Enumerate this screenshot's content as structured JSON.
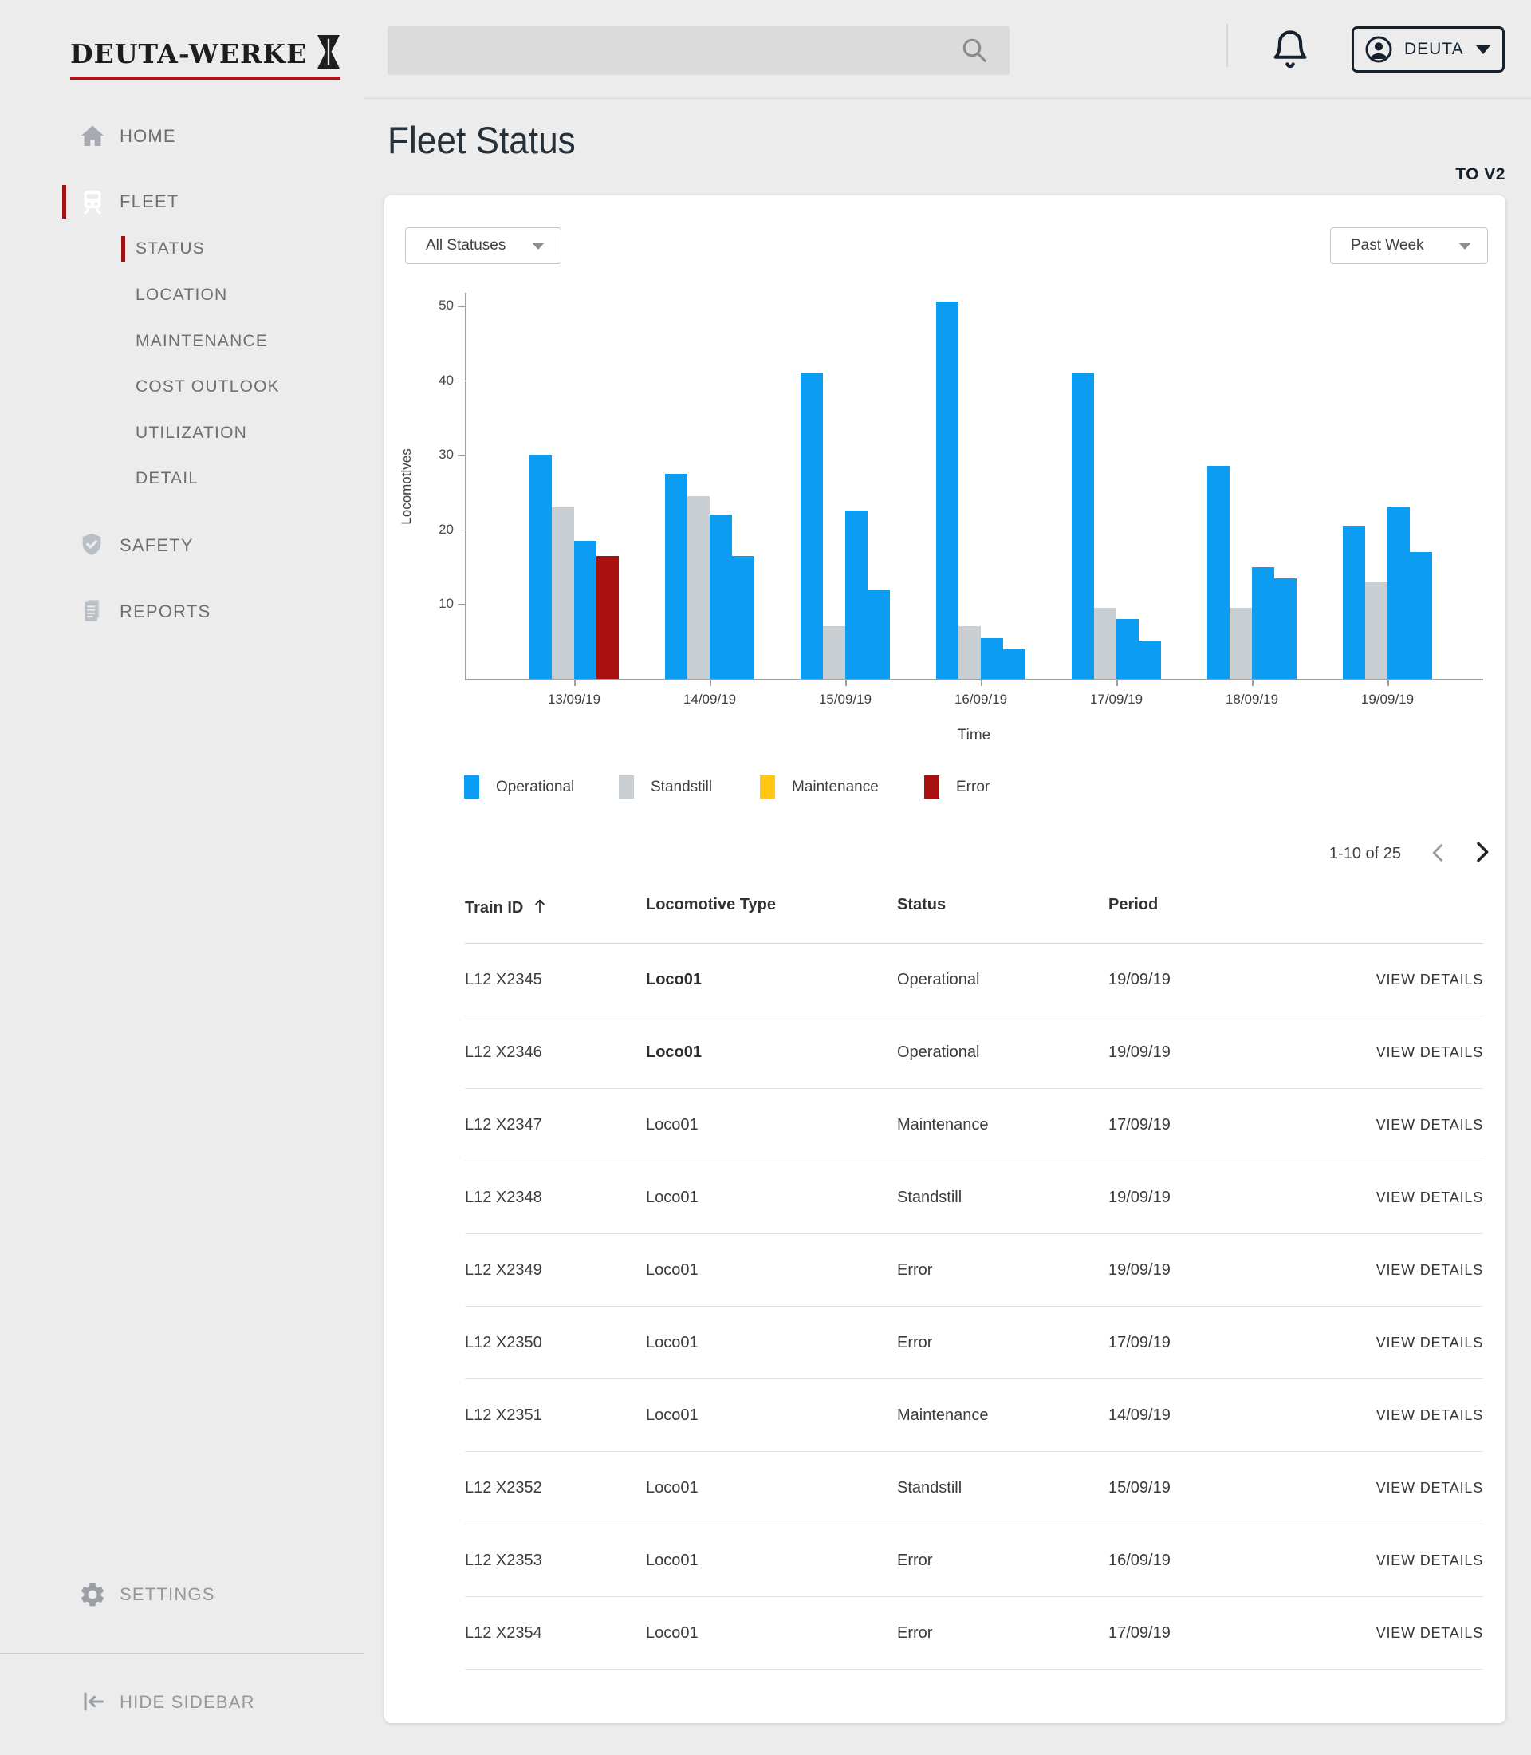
{
  "brand": {
    "name": "DEUTA-WERKE"
  },
  "topbar": {
    "search": {
      "placeholder": "",
      "value": ""
    },
    "user": {
      "label": "DEUTA"
    }
  },
  "sidebar": {
    "items": [
      {
        "id": "home",
        "label": "HOME",
        "icon": "home-icon",
        "level": 0,
        "active": false
      },
      {
        "id": "fleet",
        "label": "FLEET",
        "icon": "train-icon",
        "level": 0,
        "active": true
      },
      {
        "id": "status",
        "label": "STATUS",
        "level": 1,
        "active": true
      },
      {
        "id": "location",
        "label": "LOCATION",
        "level": 1,
        "active": false
      },
      {
        "id": "maintenance",
        "label": "MAINTENANCE",
        "level": 1,
        "active": false
      },
      {
        "id": "cost-outlook",
        "label": "COST OUTLOOK",
        "level": 1,
        "active": false
      },
      {
        "id": "utilization",
        "label": "UTILIZATION",
        "level": 1,
        "active": false
      },
      {
        "id": "detail",
        "label": "DETAIL",
        "level": 1,
        "active": false
      },
      {
        "id": "safety",
        "label": "SAFETY",
        "icon": "shield-icon",
        "level": 0,
        "active": false
      },
      {
        "id": "reports",
        "label": "REPORTS",
        "icon": "report-icon",
        "level": 0,
        "active": false
      }
    ],
    "settings_label": "SETTINGS",
    "hide_label": "HIDE SIDEBAR"
  },
  "page": {
    "title": "Fleet Status",
    "version_link": "TO V2"
  },
  "filters": {
    "status_value": "All Statuses",
    "range_value": "Past Week"
  },
  "chart_data": {
    "type": "bar",
    "title": "",
    "xlabel": "Time",
    "ylabel": "Locomotives",
    "ylim": [
      0,
      55
    ],
    "yticks": [
      10,
      20,
      30,
      40,
      50
    ],
    "grid": false,
    "legend_position": "bottom",
    "categories": [
      "13/09/19",
      "14/09/19",
      "15/09/19",
      "16/09/19",
      "17/09/19",
      "18/09/19",
      "19/09/19"
    ],
    "legend": [
      {
        "label": "Operational",
        "color": "#0C9DF3"
      },
      {
        "label": "Standstill",
        "color": "#C9CED3"
      },
      {
        "label": "Maintenance",
        "color": "#FFC612"
      },
      {
        "label": "Error",
        "color": "#A81010"
      }
    ],
    "groups": [
      {
        "category": "13/09/19",
        "bars": [
          {
            "status": "Operational",
            "value": 30
          },
          {
            "status": "Standstill",
            "value": 23
          },
          {
            "status": "Operational",
            "value": 18.5
          },
          {
            "status": "Error",
            "value": 16.5
          }
        ]
      },
      {
        "category": "14/09/19",
        "bars": [
          {
            "status": "Operational",
            "value": 27.5
          },
          {
            "status": "Standstill",
            "value": 24.5
          },
          {
            "status": "Operational",
            "value": 22
          },
          {
            "status": "Operational",
            "value": 16.5
          }
        ]
      },
      {
        "category": "15/09/19",
        "bars": [
          {
            "status": "Operational",
            "value": 41
          },
          {
            "status": "Standstill",
            "value": 7
          },
          {
            "status": "Operational",
            "value": 22.5
          },
          {
            "status": "Operational",
            "value": 12
          }
        ]
      },
      {
        "category": "16/09/19",
        "bars": [
          {
            "status": "Operational",
            "value": 50.5
          },
          {
            "status": "Standstill",
            "value": 7
          },
          {
            "status": "Operational",
            "value": 5.5
          },
          {
            "status": "Operational",
            "value": 4
          }
        ]
      },
      {
        "category": "17/09/19",
        "bars": [
          {
            "status": "Operational",
            "value": 41
          },
          {
            "status": "Standstill",
            "value": 9.5
          },
          {
            "status": "Operational",
            "value": 8
          },
          {
            "status": "Operational",
            "value": 5
          }
        ]
      },
      {
        "category": "18/09/19",
        "bars": [
          {
            "status": "Operational",
            "value": 28.5
          },
          {
            "status": "Standstill",
            "value": 9.5
          },
          {
            "status": "Operational",
            "value": 15
          },
          {
            "status": "Operational",
            "value": 13.5
          }
        ]
      },
      {
        "category": "19/09/19",
        "bars": [
          {
            "status": "Operational",
            "value": 20.5
          },
          {
            "status": "Standstill",
            "value": 13
          },
          {
            "status": "Operational",
            "value": 23
          },
          {
            "status": "Operational",
            "value": 17
          }
        ]
      }
    ]
  },
  "pagination": {
    "label": "1-10 of 25"
  },
  "table": {
    "columns": [
      {
        "label": "Train ID",
        "sorted": "asc"
      },
      {
        "label": "Locomotive Type"
      },
      {
        "label": "Status"
      },
      {
        "label": "Period"
      }
    ],
    "action_label": "VIEW DETAILS",
    "rows": [
      {
        "train_id": "L12 X2345",
        "type": "Loco01",
        "type_bold": true,
        "status": "Operational",
        "period": "19/09/19"
      },
      {
        "train_id": "L12 X2346",
        "type": "Loco01",
        "type_bold": true,
        "status": "Operational",
        "period": "19/09/19"
      },
      {
        "train_id": "L12 X2347",
        "type": "Loco01",
        "type_bold": false,
        "status": "Maintenance",
        "period": "17/09/19"
      },
      {
        "train_id": "L12 X2348",
        "type": "Loco01",
        "type_bold": false,
        "status": "Standstill",
        "period": "19/09/19"
      },
      {
        "train_id": "L12 X2349",
        "type": "Loco01",
        "type_bold": false,
        "status": "Error",
        "period": "19/09/19"
      },
      {
        "train_id": "L12 X2350",
        "type": "Loco01",
        "type_bold": false,
        "status": "Error",
        "period": "17/09/19"
      },
      {
        "train_id": "L12 X2351",
        "type": "Loco01",
        "type_bold": false,
        "status": "Maintenance",
        "period": "14/09/19"
      },
      {
        "train_id": "L12 X2352",
        "type": "Loco01",
        "type_bold": false,
        "status": "Standstill",
        "period": "15/09/19"
      },
      {
        "train_id": "L12 X2353",
        "type": "Loco01",
        "type_bold": false,
        "status": "Error",
        "period": "16/09/19"
      },
      {
        "train_id": "L12 X2354",
        "type": "Loco01",
        "type_bold": false,
        "status": "Error",
        "period": "17/09/19"
      }
    ]
  }
}
